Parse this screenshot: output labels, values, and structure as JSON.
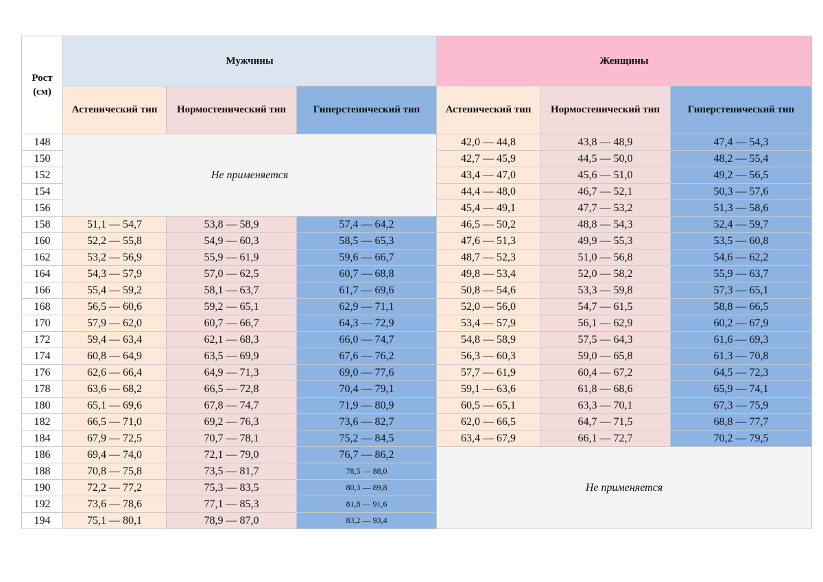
{
  "header": {
    "height_label_line1": "Рост",
    "height_label_line2": "(см)",
    "men": "Мужчины",
    "women": "Женщины",
    "types": [
      "Астенический тип",
      "Нормостенический тип",
      "Гиперстенический тип"
    ]
  },
  "not_applicable": "Не применяется",
  "rows": [
    {
      "h": "148",
      "men": null,
      "women": [
        "42,0 — 44,8",
        "43,8 — 48,9",
        "47,4 — 54,3"
      ]
    },
    {
      "h": "150",
      "men": null,
      "women": [
        "42,7 — 45,9",
        "44,5 — 50,0",
        "48,2 — 55,4"
      ]
    },
    {
      "h": "152",
      "men": null,
      "women": [
        "43,4 — 47,0",
        "45,6 — 51,0",
        "49,2 — 56,5"
      ]
    },
    {
      "h": "154",
      "men": null,
      "women": [
        "44,4 — 48,0",
        "46,7 — 52,1",
        "50,3 — 57,6"
      ]
    },
    {
      "h": "156",
      "men": null,
      "women": [
        "45,4 — 49,1",
        "47,7 — 53,2",
        "51,3 — 58,6"
      ]
    },
    {
      "h": "158",
      "men": [
        "51,1 — 54,7",
        "53,8 — 58,9",
        "57,4 — 64,2"
      ],
      "women": [
        "46,5 — 50,2",
        "48,8 — 54,3",
        "52,4 — 59,7"
      ]
    },
    {
      "h": "160",
      "men": [
        "52,2 — 55,8",
        "54,9 — 60,3",
        "58,5 — 65,3"
      ],
      "women": [
        "47,6 — 51,3",
        "49,9 — 55,3",
        "53,5 — 60,8"
      ]
    },
    {
      "h": "162",
      "men": [
        "53,2 — 56,9",
        "55,9 — 61,9",
        "59,6 — 66,7"
      ],
      "women": [
        "48,7 — 52,3",
        "51,0 — 56,8",
        "54,6 — 62,2"
      ]
    },
    {
      "h": "164",
      "men": [
        "54,3 — 57,9",
        "57,0 — 62,5",
        "60,7 — 68,8"
      ],
      "women": [
        "49,8 — 53,4",
        "52,0 — 58,2",
        "55,9 — 63,7"
      ]
    },
    {
      "h": "166",
      "men": [
        "55,4 — 59,2",
        "58,1 — 63,7",
        "61,7 — 69,6"
      ],
      "women": [
        "50,8 — 54,6",
        "53,3 — 59,8",
        "57,3 — 65,1"
      ]
    },
    {
      "h": "168",
      "men": [
        "56,5 — 60,6",
        "59,2 — 65,1",
        "62,9 — 71,1"
      ],
      "women": [
        "52,0 — 56,0",
        "54,7 — 61,5",
        "58,8 — 66,5"
      ]
    },
    {
      "h": "170",
      "men": [
        "57,9 — 62,0",
        "60,7 — 66,7",
        "64,3 — 72,9"
      ],
      "women": [
        "53,4 — 57,9",
        "56,1 — 62,9",
        "60,2 — 67,9"
      ]
    },
    {
      "h": "172",
      "men": [
        "59,4 — 63,4",
        "62,1 — 68,3",
        "66,0 — 74,7"
      ],
      "women": [
        "54,8 — 58,9",
        "57,5 — 64,3",
        "61,6 — 69,3"
      ]
    },
    {
      "h": "174",
      "men": [
        "60,8 — 64,9",
        "63,5 — 69,9",
        "67,6 — 76,2"
      ],
      "women": [
        "56,3 — 60,3",
        "59,0 — 65,8",
        "61,3 — 70,8"
      ]
    },
    {
      "h": "176",
      "men": [
        "62,6 — 66,4",
        "64,9 — 71,3",
        "69,0 — 77,6"
      ],
      "women": [
        "57,7 — 61,9",
        "60,4 — 67,2",
        "64,5 — 72,3"
      ]
    },
    {
      "h": "178",
      "men": [
        "63,6 — 68,2",
        "66,5 — 72,8",
        "70,4 — 79,1"
      ],
      "women": [
        "59,1 — 63,6",
        "61,8 — 68,6",
        "65,9 — 74,1"
      ]
    },
    {
      "h": "180",
      "men": [
        "65,1 — 69,6",
        "67,8 — 74,7",
        "71,9 — 80,9"
      ],
      "women": [
        "60,5 — 65,1",
        "63,3 — 70,1",
        "67,3 — 75,9"
      ]
    },
    {
      "h": "182",
      "men": [
        "66,5 — 71,0",
        "69,2 — 76,3",
        "73,6 — 82,7"
      ],
      "women": [
        "62,0 — 66,5",
        "64,7 — 71,5",
        "68,8 — 77,7"
      ]
    },
    {
      "h": "184",
      "men": [
        "67,9 — 72,5",
        "70,7 — 78,1",
        "75,2 — 84,5"
      ],
      "women": [
        "63,4 — 67,9",
        "66,1 — 72,7",
        "70,2 — 79,5"
      ]
    },
    {
      "h": "186",
      "men": [
        "69,4 — 74,0",
        "72,1 — 79,0",
        "76,7 — 86,2"
      ],
      "women": null
    },
    {
      "h": "188",
      "men": [
        "70,8 — 75,8",
        "73,5 — 81,7",
        "78,5 — 88,0"
      ],
      "women": null
    },
    {
      "h": "190",
      "men": [
        "72,2 — 77,2",
        "75,3 — 83,5",
        "80,3 — 89,8"
      ],
      "women": null
    },
    {
      "h": "192",
      "men": [
        "73,6 — 78,6",
        "77,1 — 85,3",
        "81,8 — 91,6"
      ],
      "women": null
    },
    {
      "h": "194",
      "men": [
        "75,1 — 80,1",
        "78,9 — 87,0",
        "83,2 — 93,4"
      ],
      "women": null
    }
  ]
}
